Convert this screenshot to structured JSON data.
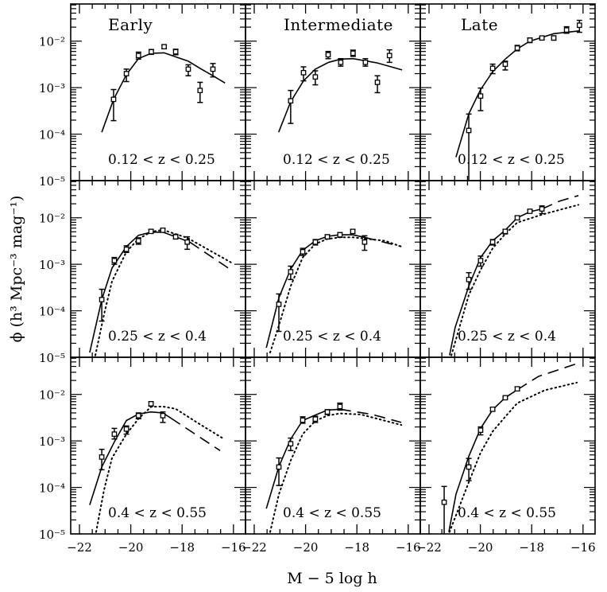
{
  "chart_data": {
    "type": "scatter",
    "layout": "3x3 grid",
    "xlabel": "M − 5 log h",
    "ylabel": "ϕ (h³ Mpc⁻³ mag⁻¹)",
    "xlim": [
      -22.34,
      -15.53
    ],
    "ylim": [
      1e-05,
      0.063
    ],
    "yscale": "log",
    "xticks": [
      -22,
      -20,
      -18,
      -16
    ],
    "xticklabels": [
      "−22",
      "−20",
      "−18",
      "−16"
    ],
    "yticks": [
      1e-05,
      0.0001,
      0.001,
      0.01
    ],
    "yticklabels": [
      "10⁻⁵",
      "10⁻⁴",
      "10⁻³",
      "10⁻²"
    ],
    "grid": false,
    "line_styles": {
      "solid": "#000000",
      "dashed": "#000000",
      "dotted": "#000000",
      "marker": "open-square"
    },
    "panels": [
      {
        "row": 0,
        "col": 0,
        "title": "Early",
        "note": "0.12 < z < 0.25",
        "points": [
          [
            -20.67,
            0.00056,
            0.000195,
            0.00091
          ],
          [
            -20.17,
            0.002,
            0.00135,
            0.0025
          ],
          [
            -19.7,
            0.0049,
            0.0041,
            0.0058
          ],
          [
            -19.2,
            0.0059,
            0.0052,
            0.0066
          ],
          [
            -18.7,
            0.0076,
            0.0069,
            0.0083
          ],
          [
            -18.25,
            0.0059,
            0.0051,
            0.0067
          ],
          [
            -17.76,
            0.0025,
            0.0018,
            0.0031
          ],
          [
            -17.3,
            0.00087,
            0.00048,
            0.0013
          ],
          [
            -16.8,
            0.0025,
            0.0017,
            0.0033
          ]
        ],
        "solid": [
          [
            -21.13,
            0.00011
          ],
          [
            -20.67,
            0.00056
          ],
          [
            -20.17,
            0.0019
          ],
          [
            -19.7,
            0.0042
          ],
          [
            -19.2,
            0.0055
          ],
          [
            -18.7,
            0.0056
          ],
          [
            -18.2,
            0.0045
          ],
          [
            -17.76,
            0.0037
          ],
          [
            -17.3,
            0.0026
          ],
          [
            -16.8,
            0.0018
          ],
          [
            -16.33,
            0.00126
          ]
        ],
        "dashed": [],
        "dotted": []
      },
      {
        "row": 0,
        "col": 1,
        "title": "Intermediate",
        "note": "0.12 < z < 0.25",
        "points": [
          [
            -20.58,
            0.00052,
            0.00017,
            0.00087
          ],
          [
            -20.08,
            0.0021,
            0.0014,
            0.0028
          ],
          [
            -19.62,
            0.0017,
            0.00115,
            0.0023
          ],
          [
            -19.12,
            0.0051,
            0.0042,
            0.006
          ],
          [
            -18.63,
            0.0035,
            0.0029,
            0.0042
          ],
          [
            -18.15,
            0.0055,
            0.0047,
            0.0064
          ],
          [
            -17.67,
            0.0035,
            0.0029,
            0.0042
          ],
          [
            -17.2,
            0.0013,
            0.00078,
            0.0018
          ],
          [
            -16.73,
            0.0049,
            0.0035,
            0.0065
          ]
        ],
        "solid": [
          [
            -21.05,
            0.00011
          ],
          [
            -20.58,
            0.0005
          ],
          [
            -20.08,
            0.0014
          ],
          [
            -19.62,
            0.0025
          ],
          [
            -19.1,
            0.0035
          ],
          [
            -18.63,
            0.0041
          ],
          [
            -18.15,
            0.0042
          ],
          [
            -17.2,
            0.0034
          ],
          [
            -16.24,
            0.0024
          ]
        ],
        "dashed": [],
        "dotted": []
      },
      {
        "row": 0,
        "col": 2,
        "title": "Late",
        "note": "0.12 < z < 0.25",
        "points": [
          [
            -20.45,
            0.00012,
            1e-05,
            0.00027
          ],
          [
            -19.99,
            0.00066,
            0.00032,
            0.00098
          ],
          [
            -19.52,
            0.0026,
            0.002,
            0.0032
          ],
          [
            -19.03,
            0.0032,
            0.0024,
            0.0037
          ],
          [
            -18.56,
            0.0071,
            0.0062,
            0.0081
          ],
          [
            -18.07,
            0.0105,
            0.0093,
            0.0117
          ],
          [
            -17.6,
            0.0117,
            0.0107,
            0.0126
          ],
          [
            -17.14,
            0.0117,
            0.0105,
            0.013
          ],
          [
            -16.64,
            0.0174,
            0.0148,
            0.0204
          ],
          [
            -16.14,
            0.022,
            0.0155,
            0.028
          ]
        ],
        "solid": [
          [
            -20.95,
            3.2e-05
          ],
          [
            -20.45,
            0.000275
          ],
          [
            -20.0,
            0.00089
          ],
          [
            -19.52,
            0.0022
          ],
          [
            -19.03,
            0.0041
          ],
          [
            -18.56,
            0.0068
          ],
          [
            -18.07,
            0.01
          ],
          [
            -17.14,
            0.0145
          ],
          [
            -16.14,
            0.0166
          ]
        ],
        "dashed": [],
        "dotted": []
      },
      {
        "row": 1,
        "col": 0,
        "note": "0.25 < z < 0.4",
        "points": [
          [
            -21.13,
            0.000174,
            6e-05,
            0.00029
          ],
          [
            -20.64,
            0.0012,
            0.001,
            0.0014
          ],
          [
            -20.17,
            0.0021,
            0.0018,
            0.0025
          ],
          [
            -19.7,
            0.0032,
            0.0027,
            0.0037
          ],
          [
            -19.21,
            0.0051,
            0.0047,
            0.0056
          ],
          [
            -18.75,
            0.0054,
            0.0049,
            0.0059
          ],
          [
            -18.25,
            0.0039,
            0.0035,
            0.0044
          ],
          [
            -17.8,
            0.003,
            0.0021,
            0.0039
          ]
        ],
        "solid": [
          [
            -21.6,
            1.26e-05
          ],
          [
            -21.13,
            0.000174
          ],
          [
            -20.73,
            0.00083
          ],
          [
            -20.17,
            0.0024
          ],
          [
            -19.7,
            0.0042
          ],
          [
            -19.2,
            0.0049
          ],
          [
            -18.75,
            0.0049
          ],
          [
            -18.25,
            0.0039
          ],
          [
            -17.7,
            0.003
          ]
        ],
        "dashed": [
          [
            -17.7,
            0.003
          ],
          [
            -16.1,
            0.00076
          ]
        ],
        "dotted": [
          [
            -21.38,
            1.1e-05
          ],
          [
            -21.03,
            8.9e-05
          ],
          [
            -20.73,
            0.00043
          ],
          [
            -20.17,
            0.00186
          ],
          [
            -19.7,
            0.0035
          ],
          [
            -19.2,
            0.005
          ],
          [
            -18.75,
            0.0055
          ],
          [
            -17.8,
            0.0037
          ],
          [
            -16.1,
            0.0011
          ]
        ]
      },
      {
        "row": 1,
        "col": 1,
        "note": "0.25 < z < 0.4",
        "points": [
          [
            -21.04,
            0.000138,
            3.6e-05,
            0.00023
          ],
          [
            -20.58,
            0.00069,
            0.00047,
            0.00091
          ],
          [
            -20.11,
            0.00186,
            0.00155,
            0.0022
          ],
          [
            -19.62,
            0.003,
            0.0026,
            0.0034
          ],
          [
            -19.15,
            0.0039,
            0.0035,
            0.0043
          ],
          [
            -18.66,
            0.0043,
            0.0038,
            0.0048
          ],
          [
            -18.16,
            0.0051,
            0.0046,
            0.0056
          ],
          [
            -17.7,
            0.003,
            0.002,
            0.0041
          ]
        ],
        "solid": [
          [
            -21.53,
            1.6e-05
          ],
          [
            -21.04,
            0.00019
          ],
          [
            -20.58,
            0.00079
          ],
          [
            -20.11,
            0.002
          ],
          [
            -19.62,
            0.0032
          ],
          [
            -19.15,
            0.004
          ],
          [
            -18.66,
            0.0043
          ],
          [
            -18.16,
            0.0043
          ],
          [
            -17.7,
            0.0038
          ]
        ],
        "dashed": [
          [
            -17.7,
            0.0038
          ],
          [
            -16.27,
            0.0024
          ]
        ],
        "dotted": [
          [
            -21.38,
            1.26e-05
          ],
          [
            -21.04,
            4.8e-05
          ],
          [
            -20.58,
            0.00034
          ],
          [
            -20.11,
            0.0014
          ],
          [
            -19.62,
            0.00275
          ],
          [
            -19.15,
            0.0035
          ],
          [
            -18.66,
            0.0038
          ],
          [
            -18.16,
            0.0038
          ],
          [
            -16.9,
            0.0032
          ],
          [
            -16.27,
            0.0024
          ]
        ]
      },
      {
        "row": 1,
        "col": 2,
        "note": "0.25 < z < 0.4",
        "points": [
          [
            -20.45,
            0.00047,
            0.00029,
            0.00066
          ],
          [
            -19.99,
            0.0012,
            0.00091,
            0.0015
          ],
          [
            -19.52,
            0.003,
            0.0026,
            0.0034
          ],
          [
            -19.03,
            0.0051,
            0.0045,
            0.0056
          ],
          [
            -18.56,
            0.01,
            0.0093,
            0.0108
          ],
          [
            -18.07,
            0.0138,
            0.0129,
            0.0148
          ],
          [
            -17.6,
            0.0155,
            0.0123,
            0.018
          ]
        ],
        "solid": [
          [
            -21.2,
            1.1e-05
          ],
          [
            -20.98,
            4.4e-05
          ],
          [
            -20.45,
            0.00034
          ],
          [
            -19.99,
            0.0014
          ],
          [
            -19.52,
            0.0032
          ],
          [
            -19.03,
            0.0054
          ],
          [
            -18.56,
            0.01
          ],
          [
            -18.07,
            0.0135
          ],
          [
            -17.6,
            0.0155
          ]
        ],
        "dashed": [
          [
            -17.6,
            0.0155
          ],
          [
            -16.9,
            0.023
          ],
          [
            -16.18,
            0.03
          ]
        ],
        "dotted": [
          [
            -21.13,
            1.1e-05
          ],
          [
            -20.45,
            0.00022
          ],
          [
            -19.99,
            0.00076
          ],
          [
            -19.52,
            0.0022
          ],
          [
            -19.03,
            0.0045
          ],
          [
            -18.56,
            0.0079
          ],
          [
            -17.6,
            0.0117
          ],
          [
            -16.18,
            0.019
          ]
        ]
      },
      {
        "row": 2,
        "col": 0,
        "note": "0.4 < z < 0.55",
        "points": [
          [
            -21.13,
            0.00045,
            0.00024,
            0.00066
          ],
          [
            -20.64,
            0.0014,
            0.0011,
            0.00186
          ],
          [
            -20.17,
            0.0018,
            0.0014,
            0.0021
          ],
          [
            -19.7,
            0.0035,
            0.003,
            0.004
          ],
          [
            -19.21,
            0.0063,
            0.0056,
            0.007
          ],
          [
            -18.75,
            0.0035,
            0.0025,
            0.0042
          ]
        ],
        "solid": [
          [
            -21.6,
            4.2e-05
          ],
          [
            -21.13,
            0.000275
          ],
          [
            -20.64,
            0.00095
          ],
          [
            -20.17,
            0.00275
          ],
          [
            -19.7,
            0.0038
          ],
          [
            -19.21,
            0.0042
          ],
          [
            -18.75,
            0.004
          ],
          [
            -18.44,
            0.0031
          ]
        ],
        "dashed": [
          [
            -18.44,
            0.0031
          ],
          [
            -16.52,
            0.00062
          ]
        ],
        "dotted": [
          [
            -21.35,
            1.1e-05
          ],
          [
            -21.04,
            8.9e-05
          ],
          [
            -20.73,
            0.00043
          ],
          [
            -20.17,
            0.0014
          ],
          [
            -19.7,
            0.003
          ],
          [
            -19.21,
            0.0054
          ],
          [
            -18.75,
            0.0055
          ],
          [
            -18.25,
            0.0049
          ],
          [
            -17.42,
            0.0025
          ],
          [
            -16.37,
            0.0011
          ]
        ]
      },
      {
        "row": 2,
        "col": 1,
        "note": "0.4 < z < 0.55",
        "points": [
          [
            -21.04,
            0.000275,
            0.00011,
            0.00043
          ],
          [
            -20.58,
            0.00087,
            0.00062,
            0.00115
          ],
          [
            -20.11,
            0.0028,
            0.0024,
            0.0033
          ],
          [
            -19.62,
            0.00295,
            0.0025,
            0.0034
          ],
          [
            -19.15,
            0.0042,
            0.0037,
            0.0047
          ],
          [
            -18.66,
            0.0055,
            0.0046,
            0.0065
          ]
        ],
        "solid": [
          [
            -21.53,
            3.5e-05
          ],
          [
            -21.04,
            0.00028
          ],
          [
            -20.58,
            0.0011
          ],
          [
            -20.11,
            0.00275
          ],
          [
            -19.62,
            0.0036
          ],
          [
            -19.15,
            0.0046
          ],
          [
            -18.66,
            0.0048
          ]
        ],
        "dashed": [
          [
            -18.66,
            0.0048
          ],
          [
            -17.4,
            0.0037
          ],
          [
            -16.27,
            0.0025
          ]
        ],
        "dotted": [
          [
            -21.38,
            1.1e-05
          ],
          [
            -21.04,
            7.1e-05
          ],
          [
            -20.58,
            0.00038
          ],
          [
            -20.11,
            0.0014
          ],
          [
            -19.62,
            0.0027
          ],
          [
            -19.15,
            0.0035
          ],
          [
            -18.66,
            0.0039
          ],
          [
            -17.84,
            0.0037
          ],
          [
            -16.27,
            0.0022
          ]
        ]
      },
      {
        "row": 2,
        "col": 2,
        "note": "0.4 < z < 0.55",
        "points": [
          [
            -21.41,
            4.8e-05,
            1e-05,
            0.000105
          ],
          [
            -20.45,
            0.000275,
            0.00014,
            0.00042
          ],
          [
            -19.99,
            0.0017,
            0.00135,
            0.002
          ],
          [
            -19.52,
            0.0048,
            0.0044,
            0.0052
          ],
          [
            -19.03,
            0.0085,
            0.0081,
            0.0089
          ],
          [
            -18.56,
            0.0132,
            0.012,
            0.0145
          ]
        ],
        "solid": [
          [
            -21.23,
            1.1e-05
          ],
          [
            -20.95,
            7.1e-05
          ],
          [
            -20.45,
            0.00047
          ],
          [
            -19.99,
            0.00186
          ],
          [
            -19.52,
            0.0047
          ],
          [
            -19.03,
            0.0085
          ],
          [
            -18.56,
            0.0126
          ]
        ],
        "dashed": [
          [
            -18.56,
            0.0126
          ],
          [
            -17.73,
            0.0245
          ],
          [
            -16.18,
            0.047
          ]
        ],
        "dotted": [
          [
            -21.2,
            1.1e-05
          ],
          [
            -20.45,
            0.00013
          ],
          [
            -19.99,
            0.00056
          ],
          [
            -19.52,
            0.0016
          ],
          [
            -19.03,
            0.0033
          ],
          [
            -18.56,
            0.0065
          ],
          [
            -17.5,
            0.0123
          ],
          [
            -16.24,
            0.018
          ]
        ]
      }
    ]
  }
}
